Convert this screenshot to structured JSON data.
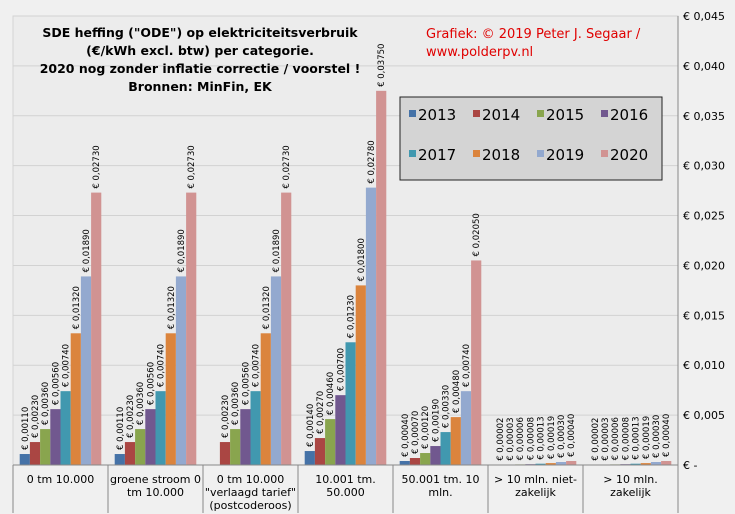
{
  "chart_data": {
    "type": "bar",
    "title_lines": [
      "SDE heffing (\"ODE\") op elektriciteitsverbruik",
      "(€/kWh excl. btw) per categorie.",
      "2020 nog zonder inflatie correctie / voorstel !",
      "Bronnen: MinFin, EK"
    ],
    "credit_lines": [
      "Grafiek:  © 2019 Peter J. Segaar /",
      "www.polderpv.nl"
    ],
    "categories": [
      [
        "0 tm 10.000"
      ],
      [
        "groene stroom 0",
        "tm 10.000"
      ],
      [
        "0 tm 10.000",
        "\"verlaagd tarief\"",
        "(postcoderoos)"
      ],
      [
        "10.001 tm.",
        "50.000"
      ],
      [
        "50.001 tm. 10",
        "mln."
      ],
      [
        "> 10 mln. niet-",
        "zakelijk"
      ],
      [
        "> 10 mln.",
        "zakelijk"
      ]
    ],
    "ylim": [
      0,
      0.045
    ],
    "yticks": [
      "€ -",
      "€ 0,005",
      "€ 0,010",
      "€ 0,015",
      "€ 0,020",
      "€ 0,025",
      "€ 0,030",
      "€ 0,035",
      "€ 0,040",
      "€ 0,045"
    ],
    "grid": true,
    "legend_position": "top-right",
    "series": [
      {
        "name": "2013",
        "color": "#4572a7",
        "values": [
          0.0011,
          0.0011,
          null,
          0.0014,
          0.0004,
          2e-05,
          2e-05
        ],
        "labels": [
          "€ 0,00110",
          "€ 0,00110",
          "",
          "€ 0,00140",
          "€ 0,00040",
          "€ 0,00002",
          "€ 0,00002"
        ]
      },
      {
        "name": "2014",
        "color": "#aa4643",
        "values": [
          0.0023,
          0.0023,
          0.0023,
          0.0027,
          0.0007,
          3e-05,
          3e-05
        ],
        "labels": [
          "€ 0,00230",
          "€ 0,00230",
          "€ 0,00230",
          "€ 0,00270",
          "€ 0,00070",
          "€ 0,00003",
          "€ 0,00003"
        ]
      },
      {
        "name": "2015",
        "color": "#89a54e",
        "values": [
          0.0036,
          0.0036,
          0.0036,
          0.0046,
          0.0012,
          6e-05,
          6e-05
        ],
        "labels": [
          "€ 0,00360",
          "€ 0,00360",
          "€ 0,00360",
          "€ 0,00460",
          "€ 0,00120",
          "€ 0,00006",
          "€ 0,00006"
        ]
      },
      {
        "name": "2016",
        "color": "#71588f",
        "values": [
          0.0056,
          0.0056,
          0.0056,
          0.007,
          0.0019,
          8e-05,
          8e-05
        ],
        "labels": [
          "€ 0,00560",
          "€ 0,00560",
          "€ 0,00560",
          "€ 0,00700",
          "€ 0,00190",
          "€ 0,00008",
          "€ 0,00008"
        ]
      },
      {
        "name": "2017",
        "color": "#4198af",
        "values": [
          0.0074,
          0.0074,
          0.0074,
          0.0123,
          0.0033,
          0.00013,
          0.00013
        ],
        "labels": [
          "€ 0,00740",
          "€ 0,00740",
          "€ 0,00740",
          "€ 0,01230",
          "€ 0,00330",
          "€ 0,00013",
          "€ 0,00013"
        ]
      },
      {
        "name": "2018",
        "color": "#db843d",
        "values": [
          0.0132,
          0.0132,
          0.0132,
          0.018,
          0.0048,
          0.00019,
          0.00019
        ],
        "labels": [
          "€ 0,01320",
          "€ 0,01320",
          "€ 0,01320",
          "€ 0,01800",
          "€ 0,00480",
          "€ 0,00019",
          "€ 0,00019"
        ]
      },
      {
        "name": "2019",
        "color": "#93a9cf",
        "values": [
          0.0189,
          0.0189,
          0.0189,
          0.0278,
          0.0074,
          0.0003,
          0.0003
        ],
        "labels": [
          "€ 0,01890",
          "€ 0,01890",
          "€ 0,01890",
          "€ 0,02780",
          "€ 0,00740",
          "€ 0,00030",
          "€ 0,00030"
        ]
      },
      {
        "name": "2020",
        "color": "#d19392",
        "values": [
          0.0273,
          0.0273,
          0.0273,
          0.0375,
          0.0205,
          0.0004,
          0.0004
        ],
        "labels": [
          "€ 0,02730",
          "€ 0,02730",
          "€ 0,02730",
          "€ 0,03750",
          "€ 0,02050",
          "€ 0,00040",
          "€ 0,00040"
        ]
      }
    ]
  }
}
